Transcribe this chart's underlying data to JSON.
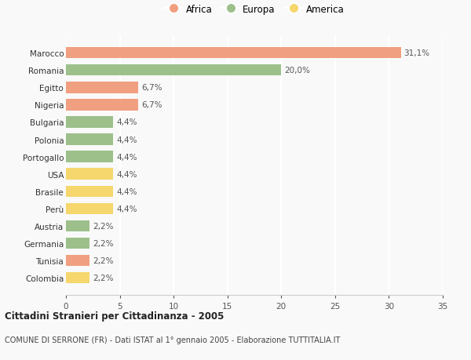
{
  "categories": [
    "Colombia",
    "Tunisia",
    "Germania",
    "Austria",
    "Perù",
    "Brasile",
    "USA",
    "Portogallo",
    "Polonia",
    "Bulgaria",
    "Nigeria",
    "Egitto",
    "Romania",
    "Marocco"
  ],
  "values": [
    2.2,
    2.2,
    2.2,
    2.2,
    4.4,
    4.4,
    4.4,
    4.4,
    4.4,
    4.4,
    6.7,
    6.7,
    20.0,
    31.1
  ],
  "colors": [
    "#F5D76E",
    "#F0A080",
    "#9DC08B",
    "#9DC08B",
    "#F5D76E",
    "#F5D76E",
    "#F5D76E",
    "#9DC08B",
    "#9DC08B",
    "#9DC08B",
    "#F0A080",
    "#F0A080",
    "#9DC08B",
    "#F0A080"
  ],
  "labels": [
    "2,2%",
    "2,2%",
    "2,2%",
    "2,2%",
    "4,4%",
    "4,4%",
    "4,4%",
    "4,4%",
    "4,4%",
    "4,4%",
    "6,7%",
    "6,7%",
    "20,0%",
    "31,1%"
  ],
  "legend": [
    {
      "label": "Africa",
      "color": "#F0A080"
    },
    {
      "label": "Europa",
      "color": "#9DC08B"
    },
    {
      "label": "America",
      "color": "#F5D76E"
    }
  ],
  "title": "Cittadini Stranieri per Cittadinanza - 2005",
  "subtitle": "COMUNE DI SERRONE (FR) - Dati ISTAT al 1° gennaio 2005 - Elaborazione TUTTITALIA.IT",
  "xlim": [
    0,
    35
  ],
  "xticks": [
    0,
    5,
    10,
    15,
    20,
    25,
    30,
    35
  ],
  "background_color": "#f9f9f9",
  "grid_color": "#ffffff",
  "bar_height": 0.65
}
